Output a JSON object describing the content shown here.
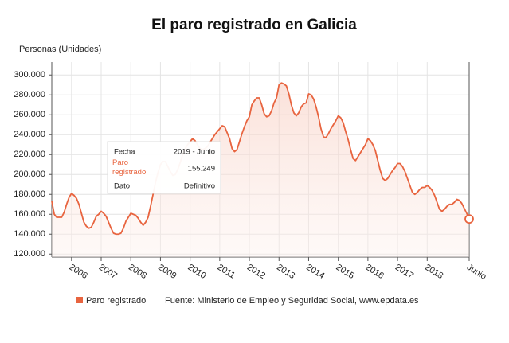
{
  "chart_data": {
    "type": "line",
    "title": "El paro registrado en Galicia",
    "y_label": "Personas (Unidades)",
    "source": "Fuente: Ministerio de Empleo y Seguridad Social, www.epdata.es",
    "categories": [
      null,
      null,
      null,
      null,
      null,
      null,
      null,
      null,
      "2006",
      null,
      null,
      null,
      null,
      null,
      null,
      null,
      null,
      null,
      null,
      null,
      "2007",
      null,
      null,
      null,
      null,
      null,
      null,
      null,
      null,
      null,
      null,
      null,
      "2008",
      null,
      null,
      null,
      null,
      null,
      null,
      null,
      null,
      null,
      null,
      null,
      "2009",
      null,
      null,
      null,
      null,
      null,
      null,
      null,
      null,
      null,
      null,
      null,
      "2010",
      null,
      null,
      null,
      null,
      null,
      null,
      null,
      null,
      null,
      null,
      null,
      "2011",
      null,
      null,
      null,
      null,
      null,
      null,
      null,
      null,
      null,
      null,
      null,
      "2012",
      null,
      null,
      null,
      null,
      null,
      null,
      null,
      null,
      null,
      null,
      null,
      "2013",
      null,
      null,
      null,
      null,
      null,
      null,
      null,
      null,
      null,
      null,
      null,
      "2014",
      null,
      null,
      null,
      null,
      null,
      null,
      null,
      null,
      null,
      null,
      null,
      "2015",
      null,
      null,
      null,
      null,
      null,
      null,
      null,
      null,
      null,
      null,
      null,
      "2016",
      null,
      null,
      null,
      null,
      null,
      null,
      null,
      null,
      null,
      null,
      null,
      "2017",
      null,
      null,
      null,
      null,
      null,
      null,
      null,
      null,
      null,
      null,
      null,
      "2018",
      null,
      null,
      null,
      null,
      null,
      null,
      null,
      null,
      null,
      null,
      null,
      null,
      null,
      null,
      null,
      null,
      "Junio"
    ],
    "series": [
      {
        "name": "Paro registrado",
        "color": "#e8643f",
        "values": [
          173000,
          160000,
          157000,
          157000,
          157000,
          162000,
          170000,
          177000,
          181000,
          179000,
          176000,
          170000,
          161000,
          152000,
          148000,
          146000,
          147000,
          152000,
          158000,
          160000,
          163000,
          161000,
          158000,
          152000,
          146000,
          141000,
          140000,
          140000,
          141000,
          146000,
          153000,
          157000,
          161000,
          160000,
          159000,
          156000,
          152000,
          149000,
          152000,
          157000,
          168000,
          180000,
          192000,
          202000,
          210000,
          213000,
          213000,
          208000,
          203000,
          199000,
          200000,
          205000,
          212000,
          220000,
          226000,
          230000,
          233000,
          236000,
          234000,
          230000,
          226000,
          225000,
          226000,
          228000,
          232000,
          236000,
          240000,
          243000,
          246000,
          249000,
          248000,
          242000,
          236000,
          226000,
          223000,
          225000,
          233000,
          241000,
          248000,
          254000,
          258000,
          270000,
          274000,
          277000,
          277000,
          270000,
          261000,
          258000,
          259000,
          264000,
          272000,
          277000,
          290000,
          292000,
          291000,
          289000,
          281000,
          270000,
          262000,
          259000,
          262000,
          268000,
          271000,
          272000,
          281000,
          280000,
          276000,
          268000,
          258000,
          246000,
          238000,
          237000,
          241000,
          246000,
          250000,
          254000,
          259000,
          257000,
          252000,
          243000,
          235000,
          225000,
          216000,
          214000,
          218000,
          222000,
          226000,
          230000,
          236000,
          234000,
          230000,
          224000,
          214000,
          204000,
          196000,
          194000,
          196000,
          200000,
          204000,
          207000,
          211000,
          211000,
          208000,
          203000,
          196000,
          189000,
          182000,
          180000,
          182000,
          185000,
          187000,
          187000,
          189000,
          187000,
          184000,
          179000,
          172000,
          165000,
          163000,
          165000,
          168000,
          170000,
          170000,
          172000,
          175000,
          174000,
          171000,
          166000,
          161000,
          155249
        ]
      }
    ],
    "ylim": [
      117000,
      313000
    ],
    "yticks": [
      {
        "value": 120000,
        "label": "120.000"
      },
      {
        "value": 140000,
        "label": "140.000"
      },
      {
        "value": 160000,
        "label": "160.000"
      },
      {
        "value": 180000,
        "label": "180.000"
      },
      {
        "value": 200000,
        "label": "200.000"
      },
      {
        "value": 220000,
        "label": "220.000"
      },
      {
        "value": 240000,
        "label": "240.000"
      },
      {
        "value": 260000,
        "label": "260.000"
      },
      {
        "value": 280000,
        "label": "280.000"
      },
      {
        "value": 300000,
        "label": "300.000"
      }
    ],
    "grid": true,
    "tooltip": {
      "rows": [
        [
          "Fecha",
          "2019 - Junio"
        ],
        [
          "Paro registrado",
          "155.249"
        ],
        [
          "Dato",
          "Definitivo"
        ]
      ]
    }
  }
}
